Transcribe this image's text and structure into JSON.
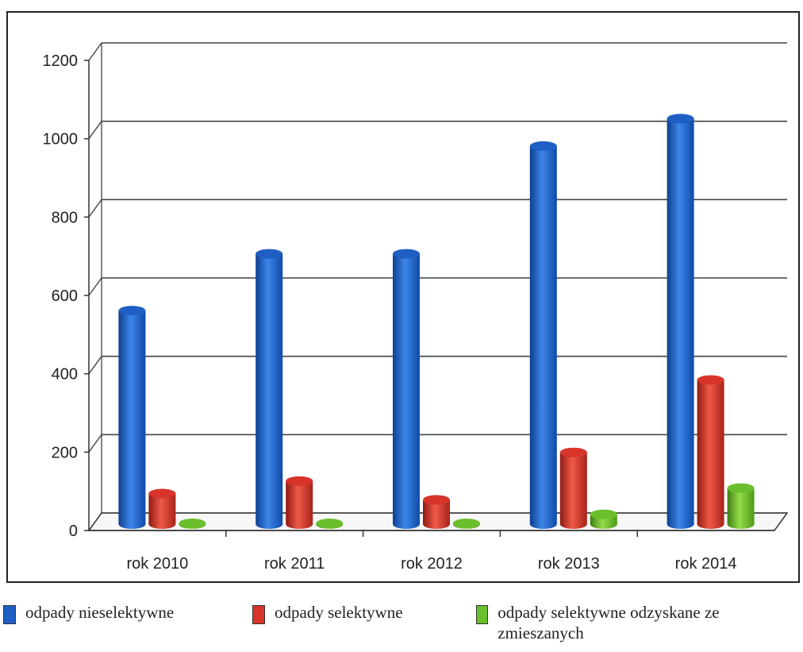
{
  "chart_data": {
    "type": "bar",
    "categories": [
      "rok 2010",
      "rok 2011",
      "rok 2012",
      "rok 2013",
      "rok 2014"
    ],
    "series": [
      {
        "name": "odpady nieselektywne",
        "values": [
          545,
          690,
          690,
          965,
          1035
        ],
        "color": "#1f5fc4"
      },
      {
        "name": "odpady selektywne",
        "values": [
          78,
          110,
          62,
          183,
          368
        ],
        "color": "#d8342a"
      },
      {
        "name": "odpady selektywne odzyskane ze zmieszanych",
        "values": [
          2,
          2,
          2,
          25,
          92
        ],
        "color": "#6cbf2c"
      }
    ],
    "ylim": [
      0,
      1200
    ],
    "yticks": [
      0,
      200,
      400,
      600,
      800,
      1000,
      1200
    ],
    "grid": true,
    "legend": "bottom"
  }
}
